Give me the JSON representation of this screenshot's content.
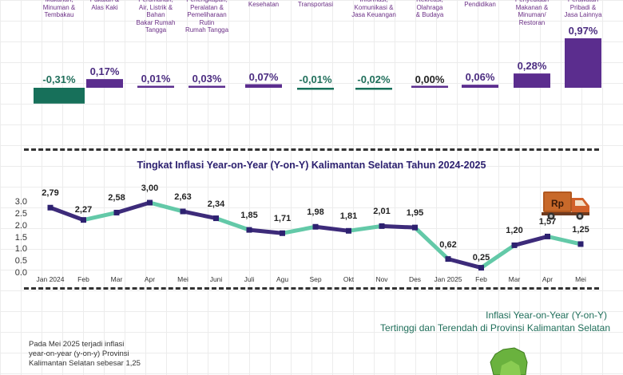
{
  "chart_data": [
    {
      "type": "bar",
      "categories": [
        "Makanan, Minuman & Tembakau",
        "Pakaian & Alas Kaki",
        "Perumahan, Air, Listrik & Bahan Bakar Rumah Tangga",
        "Perlengkapan, Peralatan & Pemeliharaan Rutin Rumah Tangga",
        "Kesehatan",
        "Transportasi",
        "Informasi, Komunikasi & Jasa Keuangan",
        "Rekreasi, Olahraga & Budaya",
        "Pendidikan",
        "Penyediaan Makanan & Minuman/ Restoran",
        "Perawatan Pribadi & Jasa Lainnya"
      ],
      "category_lines": [
        [
          "Makanan,",
          "Minuman &",
          "Tembakau"
        ],
        [
          "Pakaian &",
          "Alas Kaki"
        ],
        [
          "Perumahan,",
          "Air, Listrik &",
          "Bahan",
          "Bakar Rumah",
          "Tangga"
        ],
        [
          "Perlengkapan,",
          "Peralatan &",
          "Pemeliharaan",
          "Rutin",
          "Rumah Tangga"
        ],
        [
          "Kesehatan"
        ],
        [
          "Transportasi"
        ],
        [
          "Informasi,",
          "Komunikasi &",
          "Jasa Keuangan"
        ],
        [
          "Rekreasi,",
          "Olahraga",
          "& Budaya"
        ],
        [
          "Pendidikan"
        ],
        [
          "Penyediaan",
          "Makanan &",
          "Minuman/",
          "Restoran"
        ],
        [
          "Perawatan",
          "Pribadi &",
          "Jasa Lainnya"
        ]
      ],
      "values": [
        -0.31,
        0.17,
        0.01,
        0.03,
        0.07,
        -0.01,
        -0.02,
        0.0,
        0.06,
        0.28,
        0.97
      ],
      "value_labels": [
        "-0,31%",
        "0,17%",
        "0,01%",
        "0,03%",
        "0,07%",
        "-0,01%",
        "-0,02%",
        "0,00%",
        "0,06%",
        "0,28%",
        "0,97%"
      ],
      "colors": {
        "positive": "#5b2d8e",
        "negative": "#17705a"
      }
    },
    {
      "type": "line",
      "title": "Tingkat Inflasi Year-on-Year (Y-on-Y) Kalimantan Selatan Tahun 2024-2025",
      "x": [
        "Jan 2024",
        "Feb",
        "Mar",
        "Apr",
        "Mei",
        "Juni",
        "Juli",
        "Agu",
        "Sep",
        "Okt",
        "Nov",
        "Des",
        "Jan 2025",
        "Feb",
        "Mar",
        "Apr",
        "Mei"
      ],
      "values": [
        2.79,
        2.27,
        2.58,
        3.0,
        2.63,
        2.34,
        1.85,
        1.71,
        1.98,
        1.81,
        2.01,
        1.95,
        0.62,
        0.25,
        1.2,
        1.57,
        1.25
      ],
      "value_labels": [
        "2,79",
        "2,27",
        "2,58",
        "3,00",
        "2,63",
        "2,34",
        "1,85",
        "1,71",
        "1,98",
        "1,81",
        "2,01",
        "1,95",
        "0,62",
        "0,25",
        "1,20",
        "1,57",
        "1,25"
      ],
      "yticks": [
        "0.0",
        "0.5",
        "1.0",
        "1.5",
        "2.0",
        "2.5",
        "3.0"
      ],
      "ylim": [
        0,
        3.0
      ],
      "colors": {
        "segment_a": "#3d2b7a",
        "segment_b": "#63c9a8",
        "point": "#2d2170"
      }
    }
  ],
  "truck": {
    "icon": "truck-icon",
    "label": "Rp"
  },
  "section2": {
    "title_line1": "Inflasi Year-on-Year (Y-on-Y)",
    "title_line2": "Tertinggi dan Terendah di Provinsi Kalimantan Selatan"
  },
  "note": {
    "text": "Pada Mei 2025 terjadi inflasi year-on-year (y-on-y) Provinsi Kalimantan Selatan sebesar 1,25"
  }
}
